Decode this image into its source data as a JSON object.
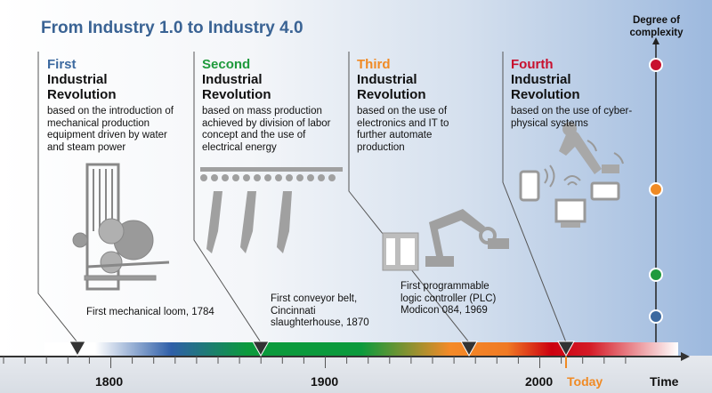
{
  "title": "From Industry 1.0 to Industry 4.0",
  "complexity_axis": {
    "label": "Degree of complexity"
  },
  "revolutions": [
    {
      "ordinal": "First",
      "heading_line1": "Industrial",
      "heading_line2": "Revolution",
      "description": "based on the introduction of  mechanical production equipment driven by water and steam power",
      "milestone": "First mechanical loom, 1784",
      "color": "#3d6aa0"
    },
    {
      "ordinal": "Second",
      "heading_line1": "Industrial",
      "heading_line2": "Revolution",
      "description": "based on mass production achieved by division of labor concept and the use of electrical energy",
      "milestone": "First conveyor belt, Cincinnati slaughterhouse, 1870",
      "color": "#1f9a3c"
    },
    {
      "ordinal": "Third",
      "heading_line1": "Industrial",
      "heading_line2": "Revolution",
      "description": "based on the use of electronics and IT to further automate production",
      "milestone": "First programmable logic controller (PLC) Modicon 084, 1969",
      "color": "#f08a24"
    },
    {
      "ordinal": "Fourth",
      "heading_line1": "Industrial",
      "heading_line2": "Revolution",
      "description": "based on the use of cyber-physical systems",
      "milestone": "",
      "color": "#c8102e"
    }
  ],
  "timeline": {
    "ticks": [
      "1800",
      "1900",
      "2000"
    ],
    "today_label": "Today",
    "axis_label": "Time",
    "today_color": "#f08a24"
  }
}
